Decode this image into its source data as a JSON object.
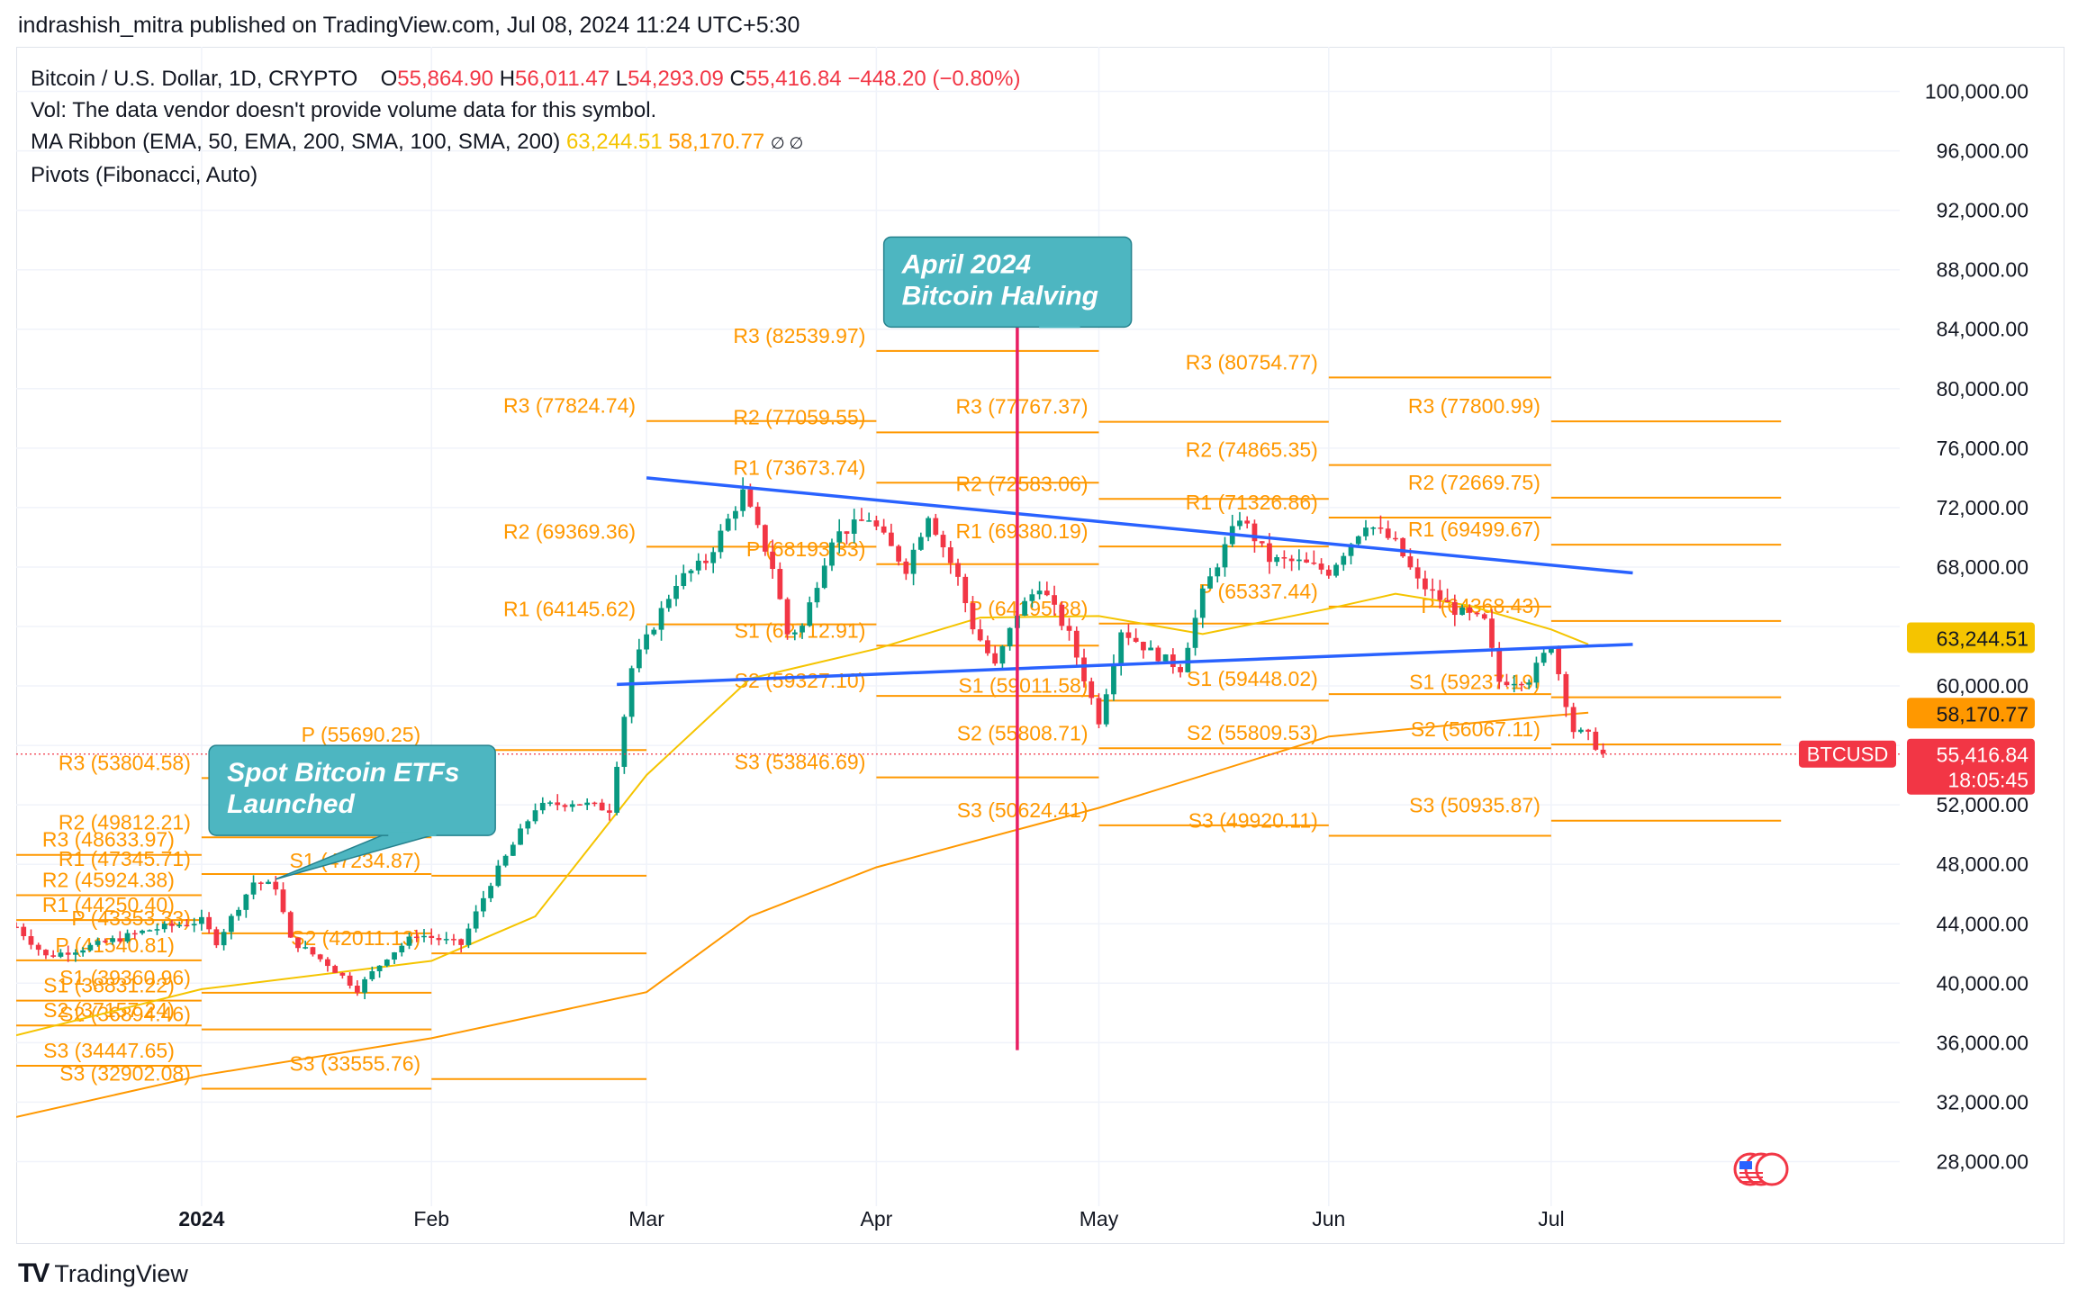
{
  "header": {
    "published_by": "indrashish_mitra published on TradingView.com, Jul 08, 2024 11:24 UTC+5:30"
  },
  "legend": {
    "symbol": "Bitcoin / U.S. Dollar, 1D, CRYPTO",
    "o_label": "O",
    "open": "55,864.90",
    "h_label": "H",
    "high": "56,011.47",
    "l_label": "L",
    "low": "54,293.09",
    "c_label": "C",
    "close": "55,416.84",
    "change": "−448.20 (−0.80%)",
    "vol_note": "Vol: The data vendor doesn't provide volume data for this symbol.",
    "ma_ribbon": "MA Ribbon (EMA, 50, EMA, 200, SMA, 100, SMA, 200)",
    "ma_val_1": "63,244.51",
    "ma_val_2": "58,170.77",
    "ma_icons": "∅ ∅",
    "pivots": "Pivots (Fibonacci, Auto)"
  },
  "footer": {
    "brand": "TradingView",
    "brand_mark": "TV"
  },
  "colors": {
    "up": "#089981",
    "down": "#f23645",
    "pivot": "#ff9800",
    "trend": "#2962ff",
    "ma_fast": "#f5c400",
    "ma_slow": "#ff9800",
    "halving": "#e91e63",
    "callout": "#4db6c1"
  },
  "chart_data": {
    "type": "candlestick",
    "symbol": "BTCUSD",
    "interval": "1D",
    "x_labels": [
      "2024",
      "Feb",
      "Mar",
      "Apr",
      "May",
      "Jun",
      "Jul"
    ],
    "x_dates": [
      "2024-01-01",
      "2024-02-01",
      "2024-03-01",
      "2024-04-01",
      "2024-05-01",
      "2024-06-01",
      "2024-07-01"
    ],
    "xlim": [
      "2023-12-07",
      "2024-08-17"
    ],
    "ylim": [
      25000,
      103000
    ],
    "y_ticks": [
      28000,
      32000,
      36000,
      40000,
      44000,
      48000,
      52000,
      56000,
      60000,
      64000,
      68000,
      72000,
      76000,
      80000,
      84000,
      88000,
      92000,
      96000,
      100000
    ],
    "y_tick_labels": [
      "28,000.00",
      "32,000.00",
      "36,000.00",
      "40,000.00",
      "44,000.00",
      "48,000.00",
      "52,000.00",
      "",
      "60,000.00",
      "",
      "68,000.00",
      "72,000.00",
      "76,000.00",
      "80,000.00",
      "84,000.00",
      "88,000.00",
      "92,000.00",
      "96,000.00",
      "100,000.00"
    ],
    "price_labels": [
      {
        "text": "63,244.51",
        "value": 63244.51,
        "color": "#f5c400",
        "text_color": "#131722"
      },
      {
        "text": "58,170.77",
        "value": 58170.77,
        "color": "#ff9800",
        "text_color": "#131722"
      },
      {
        "text": "55,416.84",
        "sub": "18:05:45",
        "value": 55416.84,
        "color": "#f23645",
        "text_color": "#ffffff",
        "tag": "BTCUSD"
      }
    ],
    "current_price": 55416.84,
    "anchor_points": [
      [
        "2023-12-07",
        43800
      ],
      [
        "2023-12-11",
        41800
      ],
      [
        "2023-12-18",
        42600
      ],
      [
        "2023-12-25",
        43600
      ],
      [
        "2024-01-01",
        44200
      ],
      [
        "2024-01-03",
        42800
      ],
      [
        "2024-01-08",
        46800
      ],
      [
        "2024-01-11",
        46500
      ],
      [
        "2024-01-13",
        42900
      ],
      [
        "2024-01-18",
        41300
      ],
      [
        "2024-01-22",
        39600
      ],
      [
        "2024-01-26",
        41800
      ],
      [
        "2024-01-30",
        43300
      ],
      [
        "2024-02-05",
        42600
      ],
      [
        "2024-02-09",
        46800
      ],
      [
        "2024-02-15",
        51800
      ],
      [
        "2024-02-20",
        52200
      ],
      [
        "2024-02-25",
        51700
      ],
      [
        "2024-02-28",
        61200
      ],
      [
        "2024-03-05",
        67000
      ],
      [
        "2024-03-09",
        68400
      ],
      [
        "2024-03-14",
        73000
      ],
      [
        "2024-03-18",
        68000
      ],
      [
        "2024-03-20",
        63500
      ],
      [
        "2024-03-22",
        64000
      ],
      [
        "2024-03-26",
        70000
      ],
      [
        "2024-03-31",
        71300
      ],
      [
        "2024-04-05",
        67900
      ],
      [
        "2024-04-08",
        71600
      ],
      [
        "2024-04-12",
        67200
      ],
      [
        "2024-04-14",
        64000
      ],
      [
        "2024-04-17",
        61300
      ],
      [
        "2024-04-20",
        64900
      ],
      [
        "2024-04-23",
        66800
      ],
      [
        "2024-04-27",
        63400
      ],
      [
        "2024-05-01",
        57700
      ],
      [
        "2024-05-04",
        63800
      ],
      [
        "2024-05-08",
        62300
      ],
      [
        "2024-05-12",
        61200
      ],
      [
        "2024-05-15",
        66200
      ],
      [
        "2024-05-20",
        71400
      ],
      [
        "2024-05-24",
        68500
      ],
      [
        "2024-05-28",
        68300
      ],
      [
        "2024-06-01",
        67700
      ],
      [
        "2024-06-06",
        71000
      ],
      [
        "2024-06-10",
        69600
      ],
      [
        "2024-06-13",
        67000
      ],
      [
        "2024-06-18",
        65100
      ],
      [
        "2024-06-22",
        64300
      ],
      [
        "2024-06-24",
        60300
      ],
      [
        "2024-06-28",
        60500
      ],
      [
        "2024-07-01",
        62800
      ],
      [
        "2024-07-04",
        57000
      ],
      [
        "2024-07-06",
        56600
      ],
      [
        "2024-07-08",
        55400
      ]
    ],
    "ma_fast_points": [
      [
        "2023-12-07",
        36500
      ],
      [
        "2024-01-01",
        39600
      ],
      [
        "2024-02-01",
        41500
      ],
      [
        "2024-02-15",
        44500
      ],
      [
        "2024-03-01",
        54000
      ],
      [
        "2024-03-15",
        60500
      ],
      [
        "2024-04-01",
        62500
      ],
      [
        "2024-04-15",
        64600
      ],
      [
        "2024-05-01",
        64700
      ],
      [
        "2024-05-15",
        63500
      ],
      [
        "2024-06-01",
        65200
      ],
      [
        "2024-06-10",
        66200
      ],
      [
        "2024-06-20",
        65400
      ],
      [
        "2024-07-01",
        63800
      ],
      [
        "2024-07-06",
        62800
      ]
    ],
    "ma_slow_points": [
      [
        "2023-12-07",
        31000
      ],
      [
        "2024-01-01",
        33800
      ],
      [
        "2024-02-01",
        36300
      ],
      [
        "2024-03-01",
        39400
      ],
      [
        "2024-03-15",
        44500
      ],
      [
        "2024-04-01",
        47800
      ],
      [
        "2024-05-01",
        51800
      ],
      [
        "2024-06-01",
        56600
      ],
      [
        "2024-07-01",
        58000
      ],
      [
        "2024-07-06",
        58200
      ]
    ],
    "trendlines": [
      {
        "start": [
          "2024-03-01",
          74000
        ],
        "end": [
          "2024-07-12",
          67600
        ]
      },
      {
        "start": [
          "2024-02-26",
          60100
        ],
        "end": [
          "2024-07-12",
          62800
        ]
      }
    ],
    "halving_line": {
      "date": "2024-04-20",
      "from": 35500,
      "to": 85300
    },
    "annotations": [
      {
        "text_line1": "April 2024",
        "text_line2": "Bitcoin Halving",
        "box_date": "2024-04-02",
        "box_price": 90200,
        "tip_date": "2024-04-20",
        "tip_price": 84600
      },
      {
        "text_line1": "Spot Bitcoin ETFs",
        "text_line2": "Launched",
        "box_date": "2024-01-02",
        "box_price": 56000,
        "tip_date": "2024-01-11",
        "tip_price": 47000
      }
    ],
    "pivot_periods": [
      {
        "start": "2023-12-07",
        "end": "2024-01-01",
        "label_align": "end",
        "levels": [
          {
            "name": "R3",
            "value": 48633.97,
            "label": "R3 (48633.97)"
          },
          {
            "name": "R2",
            "value": 45924.38,
            "label": "R2 (45924.38)"
          },
          {
            "name": "R1",
            "value": 44250.4,
            "label": "R1 (44250.40)"
          },
          {
            "name": "P",
            "value": 41540.81,
            "label": "P (41540.81)"
          },
          {
            "name": "S1",
            "value": 38831.22,
            "label": "S1 (38831.22)"
          },
          {
            "name": "S2",
            "value": 37157.24,
            "label": "S2 (37157.24)"
          },
          {
            "name": "S3",
            "value": 34447.65,
            "label": "S3 (34447.65)"
          }
        ]
      },
      {
        "start": "2024-01-01",
        "end": "2024-02-01",
        "levels": [
          {
            "name": "R3",
            "value": 53804.58,
            "label": "R3 (53804.58)"
          },
          {
            "name": "R2",
            "value": 49812.21,
            "label": "R2 (49812.21)"
          },
          {
            "name": "R1",
            "value": 47345.71,
            "label": "R1 (47345.71)"
          },
          {
            "name": "P",
            "value": 43353.33,
            "label": "P (43353.33)"
          },
          {
            "name": "S1",
            "value": 39360.96,
            "label": "S1 (39360.96)"
          },
          {
            "name": "S2",
            "value": 36894.46,
            "label": "S2 (36894.46)"
          },
          {
            "name": "S3",
            "value": 32902.08,
            "label": "S3 (32902.08)"
          }
        ]
      },
      {
        "start": "2024-02-01",
        "end": "2024-03-01",
        "levels": [
          {
            "name": "P",
            "value": 55690.25,
            "label": "P (55690.25)"
          },
          {
            "name": "S1",
            "value": 47234.87,
            "label": "S1 (47234.87)"
          },
          {
            "name": "S2",
            "value": 42011.13,
            "label": "S2 (42011.13)"
          },
          {
            "name": "S3",
            "value": 33555.76,
            "label": "S3 (33555.76)"
          }
        ]
      },
      {
        "start": "2024-03-01",
        "end": "2024-04-01",
        "levels": [
          {
            "name": "R3",
            "value": 77824.74,
            "label": "R3 (77824.74)"
          },
          {
            "name": "R2",
            "value": 69369.36,
            "label": "R2 (69369.36)"
          },
          {
            "name": "R1",
            "value": 64145.62,
            "label": "R1 (64145.62)"
          }
        ]
      },
      {
        "start": "2024-04-01",
        "end": "2024-05-01",
        "levels": [
          {
            "name": "R3",
            "value": 82539.97,
            "label": "R3 (82539.97)"
          },
          {
            "name": "R2",
            "value": 77059.55,
            "label": "R2 (77059.55)"
          },
          {
            "name": "R1",
            "value": 73673.74,
            "label": "R1 (73673.74)"
          },
          {
            "name": "P",
            "value": 68193.33,
            "label": "P (68193.33)"
          },
          {
            "name": "S1",
            "value": 62712.91,
            "label": "S1 (62712.91)"
          },
          {
            "name": "S2",
            "value": 59327.1,
            "label": "S2 (59327.10)"
          },
          {
            "name": "S3",
            "value": 53846.69,
            "label": "S3 (53846.69)"
          }
        ]
      },
      {
        "start": "2024-05-01",
        "end": "2024-06-01",
        "levels": [
          {
            "name": "R3",
            "value": 77767.37,
            "label": "R3 (77767.37)"
          },
          {
            "name": "R2",
            "value": 72583.06,
            "label": "R2 (72583.06)"
          },
          {
            "name": "R1",
            "value": 69380.19,
            "label": "R1 (69380.19)"
          },
          {
            "name": "P",
            "value": 64195.88,
            "label": "P (64195.88)"
          },
          {
            "name": "S1",
            "value": 59011.58,
            "label": "S1 (59011.58)"
          },
          {
            "name": "S2",
            "value": 55808.71,
            "label": "S2 (55808.71)"
          },
          {
            "name": "S3",
            "value": 50624.41,
            "label": "S3 (50624.41)"
          }
        ]
      },
      {
        "start": "2024-06-01",
        "end": "2024-07-01",
        "levels": [
          {
            "name": "R3",
            "value": 80754.77,
            "label": "R3 (80754.77)"
          },
          {
            "name": "R2",
            "value": 74865.35,
            "label": "R2 (74865.35)"
          },
          {
            "name": "R1",
            "value": 71326.86,
            "label": "R1 (71326.86)"
          },
          {
            "name": "P",
            "value": 65337.44,
            "label": "P (65337.44)"
          },
          {
            "name": "S1",
            "value": 59448.02,
            "label": "S1 (59448.02)"
          },
          {
            "name": "S2",
            "value": 55809.53,
            "label": "S2 (55809.53)"
          },
          {
            "name": "S3",
            "value": 49920.11,
            "label": "S3 (49920.11)"
          }
        ]
      },
      {
        "start": "2024-07-01",
        "end": "2024-08-01",
        "levels": [
          {
            "name": "R3",
            "value": 77800.99,
            "label": "R3 (77800.99)"
          },
          {
            "name": "R2",
            "value": 72669.75,
            "label": "R2 (72669.75)"
          },
          {
            "name": "R1",
            "value": 69499.67,
            "label": "R1 (69499.67)"
          },
          {
            "name": "P",
            "value": 64368.43,
            "label": "P (64368.43)"
          },
          {
            "name": "S1",
            "value": 59237.19,
            "label": "S1 (59237.19)"
          },
          {
            "name": "S2",
            "value": 56067.11,
            "label": "S2 (56067.11)"
          },
          {
            "name": "S3",
            "value": 50935.87,
            "label": "S3 (50935.87)"
          }
        ]
      }
    ]
  }
}
